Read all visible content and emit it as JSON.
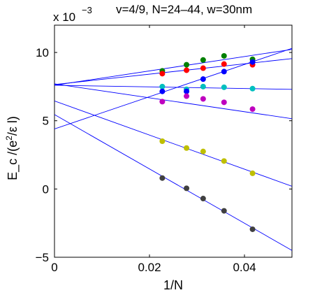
{
  "chart_data": {
    "type": "scatter",
    "title": "v=4/9, N=24–44, w=30nm",
    "xlabel": "1/N",
    "ylabel": "E_c /(e^2/ε l)",
    "y_multiplier_label": "x 10",
    "y_multiplier_exponent": "−3",
    "xlim": [
      0,
      0.05
    ],
    "ylim": [
      -5,
      12
    ],
    "x_ticks": [
      0,
      0.02,
      0.04
    ],
    "x_tick_labels": [
      "0",
      "0.02",
      "0.04"
    ],
    "y_ticks": [
      -5,
      0,
      5,
      10
    ],
    "y_tick_labels": [
      "−5",
      "0",
      "5",
      "10"
    ],
    "grid": false,
    "x": [
      0.0227,
      0.0278,
      0.0313,
      0.0357,
      0.0417
    ],
    "series": [
      {
        "color": "#008000",
        "values": [
          8.65,
          9.1,
          9.45,
          9.75,
          9.5
        ],
        "fit": {
          "intercept": 7.6,
          "slope": 52.5
        }
      },
      {
        "color": "#ff0000",
        "values": [
          8.45,
          8.7,
          8.85,
          9.15,
          9.1
        ],
        "fit": {
          "intercept": 7.65,
          "slope": 38.0
        }
      },
      {
        "color": "#00bfbf",
        "values": [
          7.5,
          7.3,
          7.5,
          7.45,
          7.35
        ],
        "fit": {
          "intercept": 7.6,
          "slope": -6.0
        }
      },
      {
        "color": "#0000ff",
        "values": [
          7.15,
          7.15,
          8.05,
          8.6,
          9.3
        ],
        "fit": {
          "intercept": 4.4,
          "slope": 118.0
        }
      },
      {
        "color": "#bf00bf",
        "values": [
          6.4,
          6.8,
          6.6,
          6.35,
          5.85
        ],
        "fit": {
          "intercept": 7.7,
          "slope": -51.0
        }
      },
      {
        "color": "#bfbf00",
        "values": [
          3.5,
          3.0,
          2.75,
          2.05,
          1.15
        ],
        "fit": {
          "intercept": 6.45,
          "slope": -125.0
        }
      },
      {
        "color": "#404040",
        "values": [
          0.8,
          0.05,
          -0.7,
          -1.6,
          -2.95
        ],
        "fit": {
          "intercept": 5.45,
          "slope": -199.0
        }
      }
    ],
    "fit_line_color": "#0000ff",
    "fit_xlim": [
      0,
      0.05
    ]
  }
}
